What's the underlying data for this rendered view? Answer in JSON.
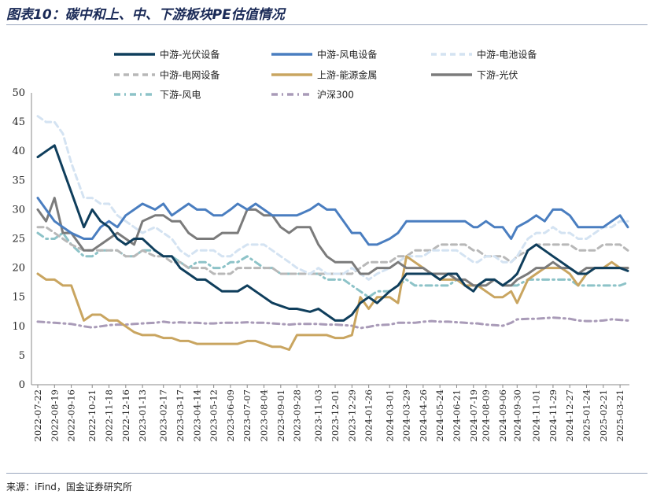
{
  "header": {
    "title": "图表10：碳中和上、中、下游板块PE估值情况"
  },
  "footer": {
    "source": "来源：iFind，国金证券研究所"
  },
  "chart_data": {
    "type": "line",
    "title": "",
    "xlabel": "",
    "ylabel": "",
    "ylim": [
      0,
      50
    ],
    "yticks": [
      0,
      5,
      10,
      15,
      20,
      25,
      30,
      35,
      40,
      45,
      50
    ],
    "grid": false,
    "legend_position": "top",
    "x_ticks": [
      "2022-07-22",
      "2022-08-19",
      "2022-09-16",
      "2022-10-21",
      "2022-11-18",
      "2022-12-16",
      "2023-01-13",
      "2023-02-17",
      "2023-03-17",
      "2023-04-14",
      "2023-05-12",
      "2023-06-09",
      "2023-07-07",
      "2023-08-04",
      "2023-09-01",
      "2023-09-28",
      "2023-11-03",
      "2023-12-01",
      "2023-12-29",
      "2024-01-26",
      "2024-03-01",
      "2024-03-29",
      "2024-04-26",
      "2024-05-24",
      "2024-06-21",
      "2024-07-19",
      "2024-08-09",
      "2024-09-06",
      "2024-09-30",
      "2024-11-01",
      "2024-11-29",
      "2024-12-27",
      "2025-01-24",
      "2025-02-21",
      "2025-03-21"
    ],
    "x": [
      "2022-07-22",
      "2022-08-05",
      "2022-08-19",
      "2022-09-02",
      "2022-09-16",
      "2022-10-07",
      "2022-10-21",
      "2022-11-04",
      "2022-11-18",
      "2022-12-02",
      "2022-12-16",
      "2022-12-30",
      "2023-01-13",
      "2023-02-03",
      "2023-02-17",
      "2023-03-03",
      "2023-03-17",
      "2023-03-31",
      "2023-04-14",
      "2023-04-28",
      "2023-05-12",
      "2023-05-26",
      "2023-06-09",
      "2023-06-21",
      "2023-07-07",
      "2023-07-21",
      "2023-08-04",
      "2023-08-18",
      "2023-09-01",
      "2023-09-15",
      "2023-09-28",
      "2023-10-20",
      "2023-11-03",
      "2023-11-17",
      "2023-12-01",
      "2023-12-15",
      "2023-12-29",
      "2024-01-12",
      "2024-01-26",
      "2024-02-09",
      "2024-03-01",
      "2024-03-15",
      "2024-03-29",
      "2024-04-12",
      "2024-04-26",
      "2024-05-10",
      "2024-05-24",
      "2024-06-07",
      "2024-06-21",
      "2024-07-05",
      "2024-07-19",
      "2024-07-26",
      "2024-08-09",
      "2024-08-23",
      "2024-09-06",
      "2024-09-20",
      "2024-09-30",
      "2024-10-18",
      "2024-11-01",
      "2024-11-15",
      "2024-11-29",
      "2024-12-13",
      "2024-12-27",
      "2025-01-10",
      "2025-01-24",
      "2025-02-07",
      "2025-02-21",
      "2025-03-07",
      "2025-03-21",
      "2025-04-03"
    ],
    "series": [
      {
        "name": "中游-光伏设备",
        "color": "#0f3e5c",
        "dash": "solid",
        "values": [
          39,
          40,
          41,
          37,
          33,
          27,
          30,
          28,
          27,
          25,
          24,
          25,
          25,
          23,
          22,
          22,
          20,
          19,
          18,
          18,
          17,
          16,
          16,
          16,
          17,
          16,
          15,
          14,
          13.5,
          13,
          13,
          12.5,
          13,
          12,
          11,
          11,
          12,
          14,
          15,
          14,
          16,
          17,
          19,
          19,
          19,
          19,
          18,
          19,
          19,
          17,
          16,
          17,
          18,
          18,
          17,
          18,
          19,
          23,
          24,
          23,
          22,
          21,
          20,
          19,
          19,
          20,
          20,
          20,
          20,
          19.5
        ]
      },
      {
        "name": "中游-风电设备",
        "color": "#4a7ec0",
        "dash": "solid",
        "values": [
          32,
          30,
          28,
          27,
          26,
          25,
          25,
          27,
          28,
          27,
          29,
          30,
          31,
          30,
          31,
          29,
          30,
          31,
          30,
          30,
          29,
          29,
          30,
          31,
          30,
          31,
          30,
          29,
          29,
          29,
          29,
          30,
          31,
          30,
          30,
          28,
          26,
          26,
          24,
          24,
          25,
          26,
          28,
          28,
          28,
          28,
          28,
          28,
          28,
          28,
          27,
          27,
          28,
          27,
          27,
          25,
          27,
          28,
          29,
          28,
          30,
          30,
          29,
          27,
          27,
          27,
          27,
          28,
          29,
          27
        ]
      },
      {
        "name": "中游-电池设备",
        "color": "#d4e3f2",
        "dash": "dash",
        "values": [
          46,
          45,
          45,
          43,
          38,
          32,
          32,
          31,
          31,
          29,
          28,
          27,
          26,
          27,
          26,
          25,
          23,
          22,
          23,
          23,
          23,
          22,
          22,
          23,
          24,
          24,
          24,
          23,
          22,
          21,
          20,
          19,
          20,
          19,
          19,
          19,
          20,
          19,
          18,
          19,
          20,
          21,
          22,
          22,
          22,
          23,
          23,
          23,
          23,
          22,
          21,
          21,
          22,
          22,
          21,
          21,
          22,
          25,
          26,
          26,
          27,
          26,
          26,
          25,
          25,
          26,
          27,
          27,
          28,
          28
        ]
      },
      {
        "name": "中游-电网设备",
        "color": "#b8b8b8",
        "dash": "dash",
        "values": [
          27,
          27,
          26,
          25,
          24,
          23,
          23,
          23,
          23,
          23,
          22,
          22,
          23,
          22,
          22,
          21,
          21,
          20,
          20,
          20,
          19,
          19,
          19,
          20,
          20,
          20,
          20,
          20,
          19,
          19,
          19,
          19,
          19,
          19,
          19,
          19,
          19,
          20,
          21,
          21,
          21,
          22,
          22,
          23,
          23,
          23,
          24,
          24,
          24,
          24,
          23,
          23,
          22,
          22,
          22,
          21,
          22,
          23,
          24,
          24,
          24,
          24,
          24,
          23,
          23,
          23,
          24,
          24,
          24,
          23
        ]
      },
      {
        "name": "上游-能源金属",
        "color": "#c9a560",
        "dash": "solid",
        "values": [
          19,
          18,
          18,
          17,
          17,
          11,
          12,
          12,
          11,
          11,
          10,
          9,
          8.5,
          8.5,
          8,
          8,
          7.5,
          7.5,
          7,
          7,
          7,
          7,
          7,
          7,
          7.5,
          7.5,
          7,
          6.5,
          6.5,
          6,
          8.5,
          8.5,
          8.5,
          8.5,
          8,
          8,
          8.5,
          15,
          13,
          15,
          15,
          14,
          22,
          21,
          20,
          19,
          18,
          18,
          18,
          17,
          17,
          17,
          16,
          15,
          15,
          16,
          14,
          18,
          19,
          20,
          20,
          20,
          19,
          17,
          19,
          20,
          20,
          21,
          20,
          20
        ]
      },
      {
        "name": "下游-光伏",
        "color": "#7b7b7b",
        "dash": "solid",
        "values": [
          30,
          28,
          32,
          26,
          26,
          23,
          23,
          24,
          25,
          26,
          25,
          24,
          28,
          29,
          29,
          28,
          28,
          26,
          25,
          25,
          25,
          26,
          26,
          26,
          30,
          30,
          29,
          29,
          27,
          26,
          27,
          27,
          24,
          22,
          21,
          21,
          21,
          19,
          19,
          20,
          20,
          21,
          20,
          20,
          20,
          19,
          19,
          19,
          18,
          18,
          17,
          17,
          17,
          18,
          17,
          17,
          18,
          19,
          20,
          20,
          21,
          20,
          20,
          19,
          20,
          20,
          20,
          20,
          20,
          20
        ]
      },
      {
        "name": "下游-风电",
        "color": "#8dc3c8",
        "dash": "dashdot",
        "values": [
          26,
          25,
          25,
          26,
          24,
          22,
          22,
          23,
          23,
          23,
          22,
          22,
          23,
          23,
          22,
          22,
          21,
          20,
          21,
          21,
          20,
          20,
          21,
          21,
          22,
          21,
          20,
          20,
          19,
          19,
          19,
          19,
          19,
          18,
          18,
          18,
          17,
          16,
          15,
          16,
          16,
          17,
          18,
          17,
          17,
          17,
          17,
          17,
          18,
          17,
          17,
          17,
          18,
          18,
          17,
          17,
          17,
          18,
          18,
          18,
          18,
          18,
          18,
          17,
          17,
          17,
          17,
          17,
          17,
          17.5
        ]
      },
      {
        "name": "沪深300",
        "color": "#a99bb8",
        "dash": "dashdot",
        "values": [
          10.8,
          10.7,
          10.6,
          10.5,
          10.4,
          10,
          9.8,
          10,
          10.2,
          10.3,
          10.3,
          10.4,
          10.5,
          10.6,
          10.8,
          10.6,
          10.7,
          10.6,
          10.6,
          10.5,
          10.5,
          10.6,
          10.6,
          10.6,
          10.7,
          10.6,
          10.6,
          10.5,
          10.4,
          10.3,
          10.4,
          10.4,
          10.4,
          10.3,
          10.3,
          10.2,
          10.1,
          9.7,
          9.9,
          10.2,
          10.3,
          10.6,
          10.6,
          10.6,
          10.8,
          10.9,
          10.8,
          10.8,
          10.7,
          10.6,
          10.5,
          10.5,
          10.3,
          10.2,
          10.1,
          10.6,
          11.2,
          11.3,
          11.3,
          11.4,
          11.5,
          11.4,
          11.3,
          11,
          10.9,
          10.9,
          11,
          11.2,
          11.1,
          11
        ]
      }
    ]
  }
}
